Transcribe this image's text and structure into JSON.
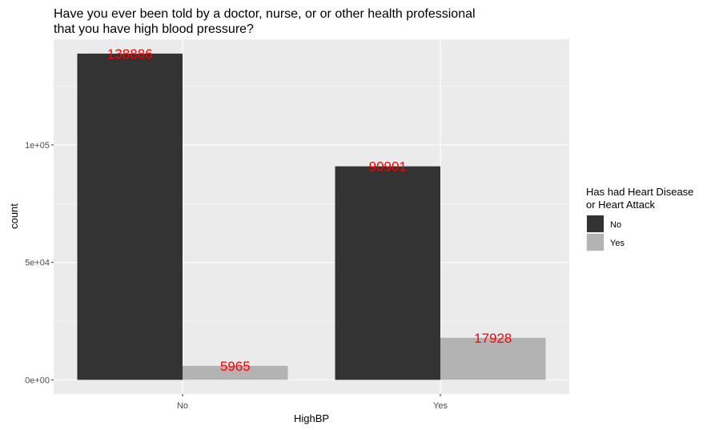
{
  "chart_data": {
    "type": "bar",
    "title_lines": [
      "Have you ever been told by a doctor, nurse, or or other health professional",
      "that you have high blood pressure?"
    ],
    "xlabel": "HighBP",
    "ylabel": "count",
    "categories": [
      "No",
      "Yes"
    ],
    "series": [
      {
        "name": "No",
        "values": [
          138886,
          90901
        ],
        "color": "#333333"
      },
      {
        "name": "Yes",
        "values": [
          5965,
          17928
        ],
        "color": "#b3b3b3"
      }
    ],
    "ylim": [
      -6000,
      145000
    ],
    "yticks": [
      {
        "value": 0,
        "label": "0e+00"
      },
      {
        "value": 50000,
        "label": "5e+04"
      },
      {
        "value": 100000,
        "label": "1e+05"
      }
    ],
    "legend": {
      "title_lines": [
        "Has had Heart Disease",
        "or Heart Attack"
      ],
      "placement": "right"
    },
    "label_color": "#ff0000",
    "panel_background": "#ebebeb",
    "grid": true
  }
}
